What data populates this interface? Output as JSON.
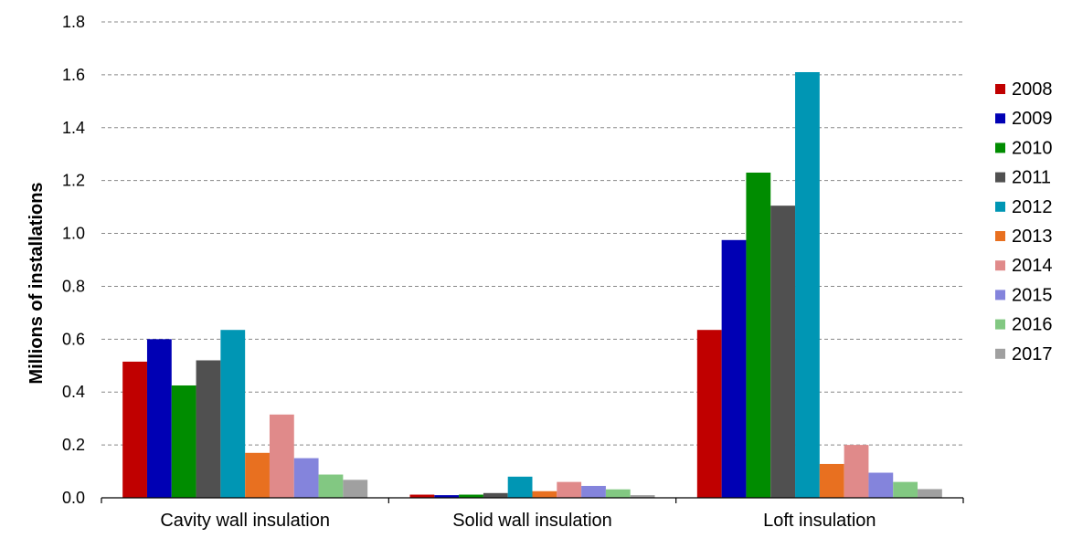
{
  "chart_data": {
    "type": "bar",
    "title": "",
    "xlabel": "",
    "ylabel": "Millions of installations",
    "ylim": [
      0,
      1.8
    ],
    "yticks": [
      "0.0",
      "0.2",
      "0.4",
      "0.6",
      "0.8",
      "1.0",
      "1.2",
      "1.4",
      "1.6",
      "1.8"
    ],
    "grid": true,
    "legend_position": "right",
    "categories": [
      "Cavity wall insulation",
      "Solid wall insulation",
      "Loft insulation"
    ],
    "series": [
      {
        "name": "2008",
        "color": "#c00000",
        "values": [
          0.515,
          0.012,
          0.635
        ]
      },
      {
        "name": "2009",
        "color": "#0000b4",
        "values": [
          0.6,
          0.01,
          0.975
        ]
      },
      {
        "name": "2010",
        "color": "#008c00",
        "values": [
          0.425,
          0.012,
          1.23
        ]
      },
      {
        "name": "2011",
        "color": "#505050",
        "values": [
          0.52,
          0.018,
          1.105
        ]
      },
      {
        "name": "2012",
        "color": "#0096b4",
        "values": [
          0.635,
          0.08,
          1.61
        ]
      },
      {
        "name": "2013",
        "color": "#e87020",
        "values": [
          0.17,
          0.025,
          0.128
        ]
      },
      {
        "name": "2014",
        "color": "#e08a8a",
        "values": [
          0.315,
          0.06,
          0.2
        ]
      },
      {
        "name": "2015",
        "color": "#8484dc",
        "values": [
          0.15,
          0.045,
          0.095
        ]
      },
      {
        "name": "2016",
        "color": "#82c882",
        "values": [
          0.088,
          0.032,
          0.06
        ]
      },
      {
        "name": "2017",
        "color": "#a0a0a0",
        "values": [
          0.068,
          0.01,
          0.033
        ]
      }
    ]
  }
}
